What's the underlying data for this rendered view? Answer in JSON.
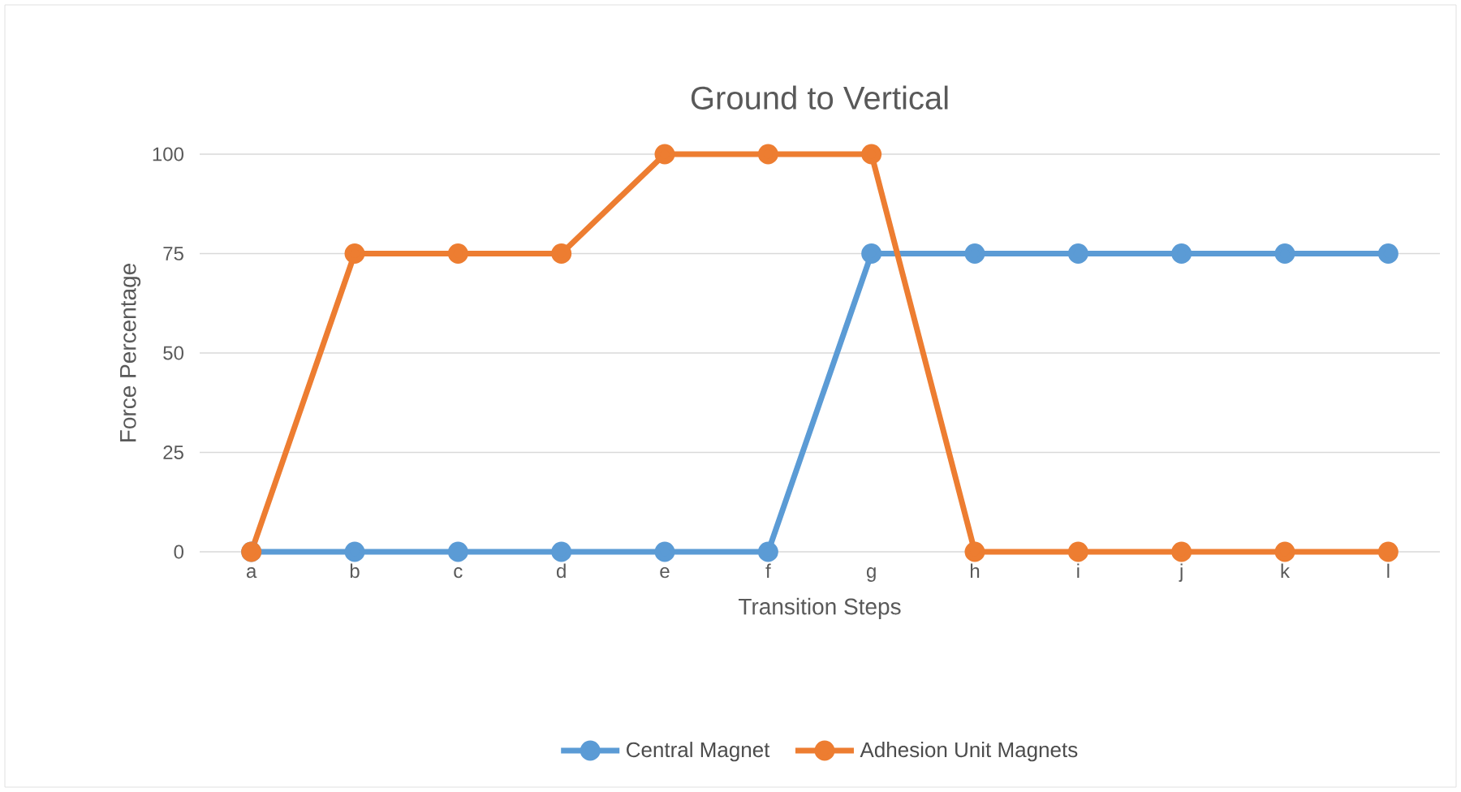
{
  "chart_data": {
    "type": "line",
    "title": "Ground to Vertical",
    "xlabel": "Transition Steps",
    "ylabel": "Force Percentage",
    "categories": [
      "a",
      "b",
      "c",
      "d",
      "e",
      "f",
      "g",
      "h",
      "i",
      "j",
      "k",
      "l"
    ],
    "series": [
      {
        "name": "Central Magnet",
        "color": "#5b9bd5",
        "values": [
          0,
          0,
          0,
          0,
          0,
          0,
          75,
          75,
          75,
          75,
          75,
          75
        ]
      },
      {
        "name": "Adhesion Unit Magnets",
        "color": "#ed7d31",
        "values": [
          0,
          75,
          75,
          75,
          100,
          100,
          100,
          0,
          0,
          0,
          0,
          0
        ]
      }
    ],
    "ylim": [
      0,
      100
    ],
    "yticks": [
      0,
      25,
      50,
      75,
      100
    ],
    "grid": "y",
    "legend": "bottom",
    "marker": "circle",
    "line_style": "solid"
  }
}
